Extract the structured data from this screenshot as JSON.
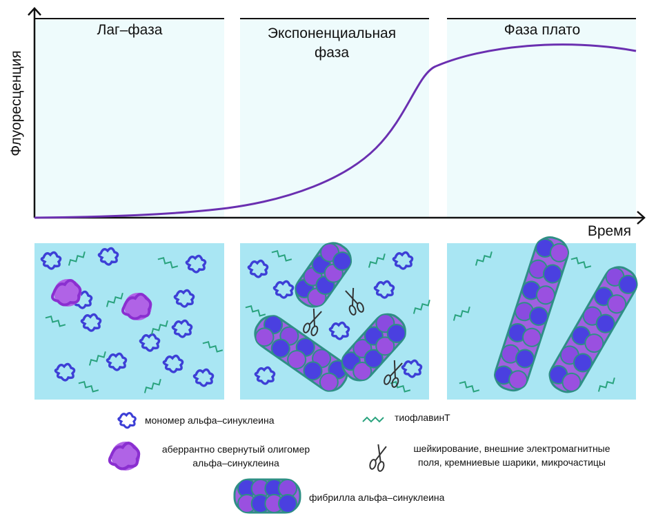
{
  "axes": {
    "y_label": "Флуоресценция",
    "x_label": "Время"
  },
  "phases": [
    {
      "lines": [
        "Лаг–фаза"
      ]
    },
    {
      "lines": [
        "Экспоненциальная",
        "фаза"
      ]
    },
    {
      "lines": [
        "Фаза плато"
      ]
    }
  ],
  "legend": [
    {
      "lines": [
        "мономер альфа–синуклеина"
      ]
    },
    {
      "lines": [
        "аберрантно свернутый олигомер",
        "альфа–синуклеина"
      ]
    },
    {
      "lines": [
        "тиофлавинТ"
      ]
    },
    {
      "lines": [
        "шейкирование, внешние электромагнитные",
        "поля, кремниевые шарики, микрочастицы"
      ]
    },
    {
      "lines": [
        "фибрилла альфа–синуклеина"
      ]
    }
  ]
}
